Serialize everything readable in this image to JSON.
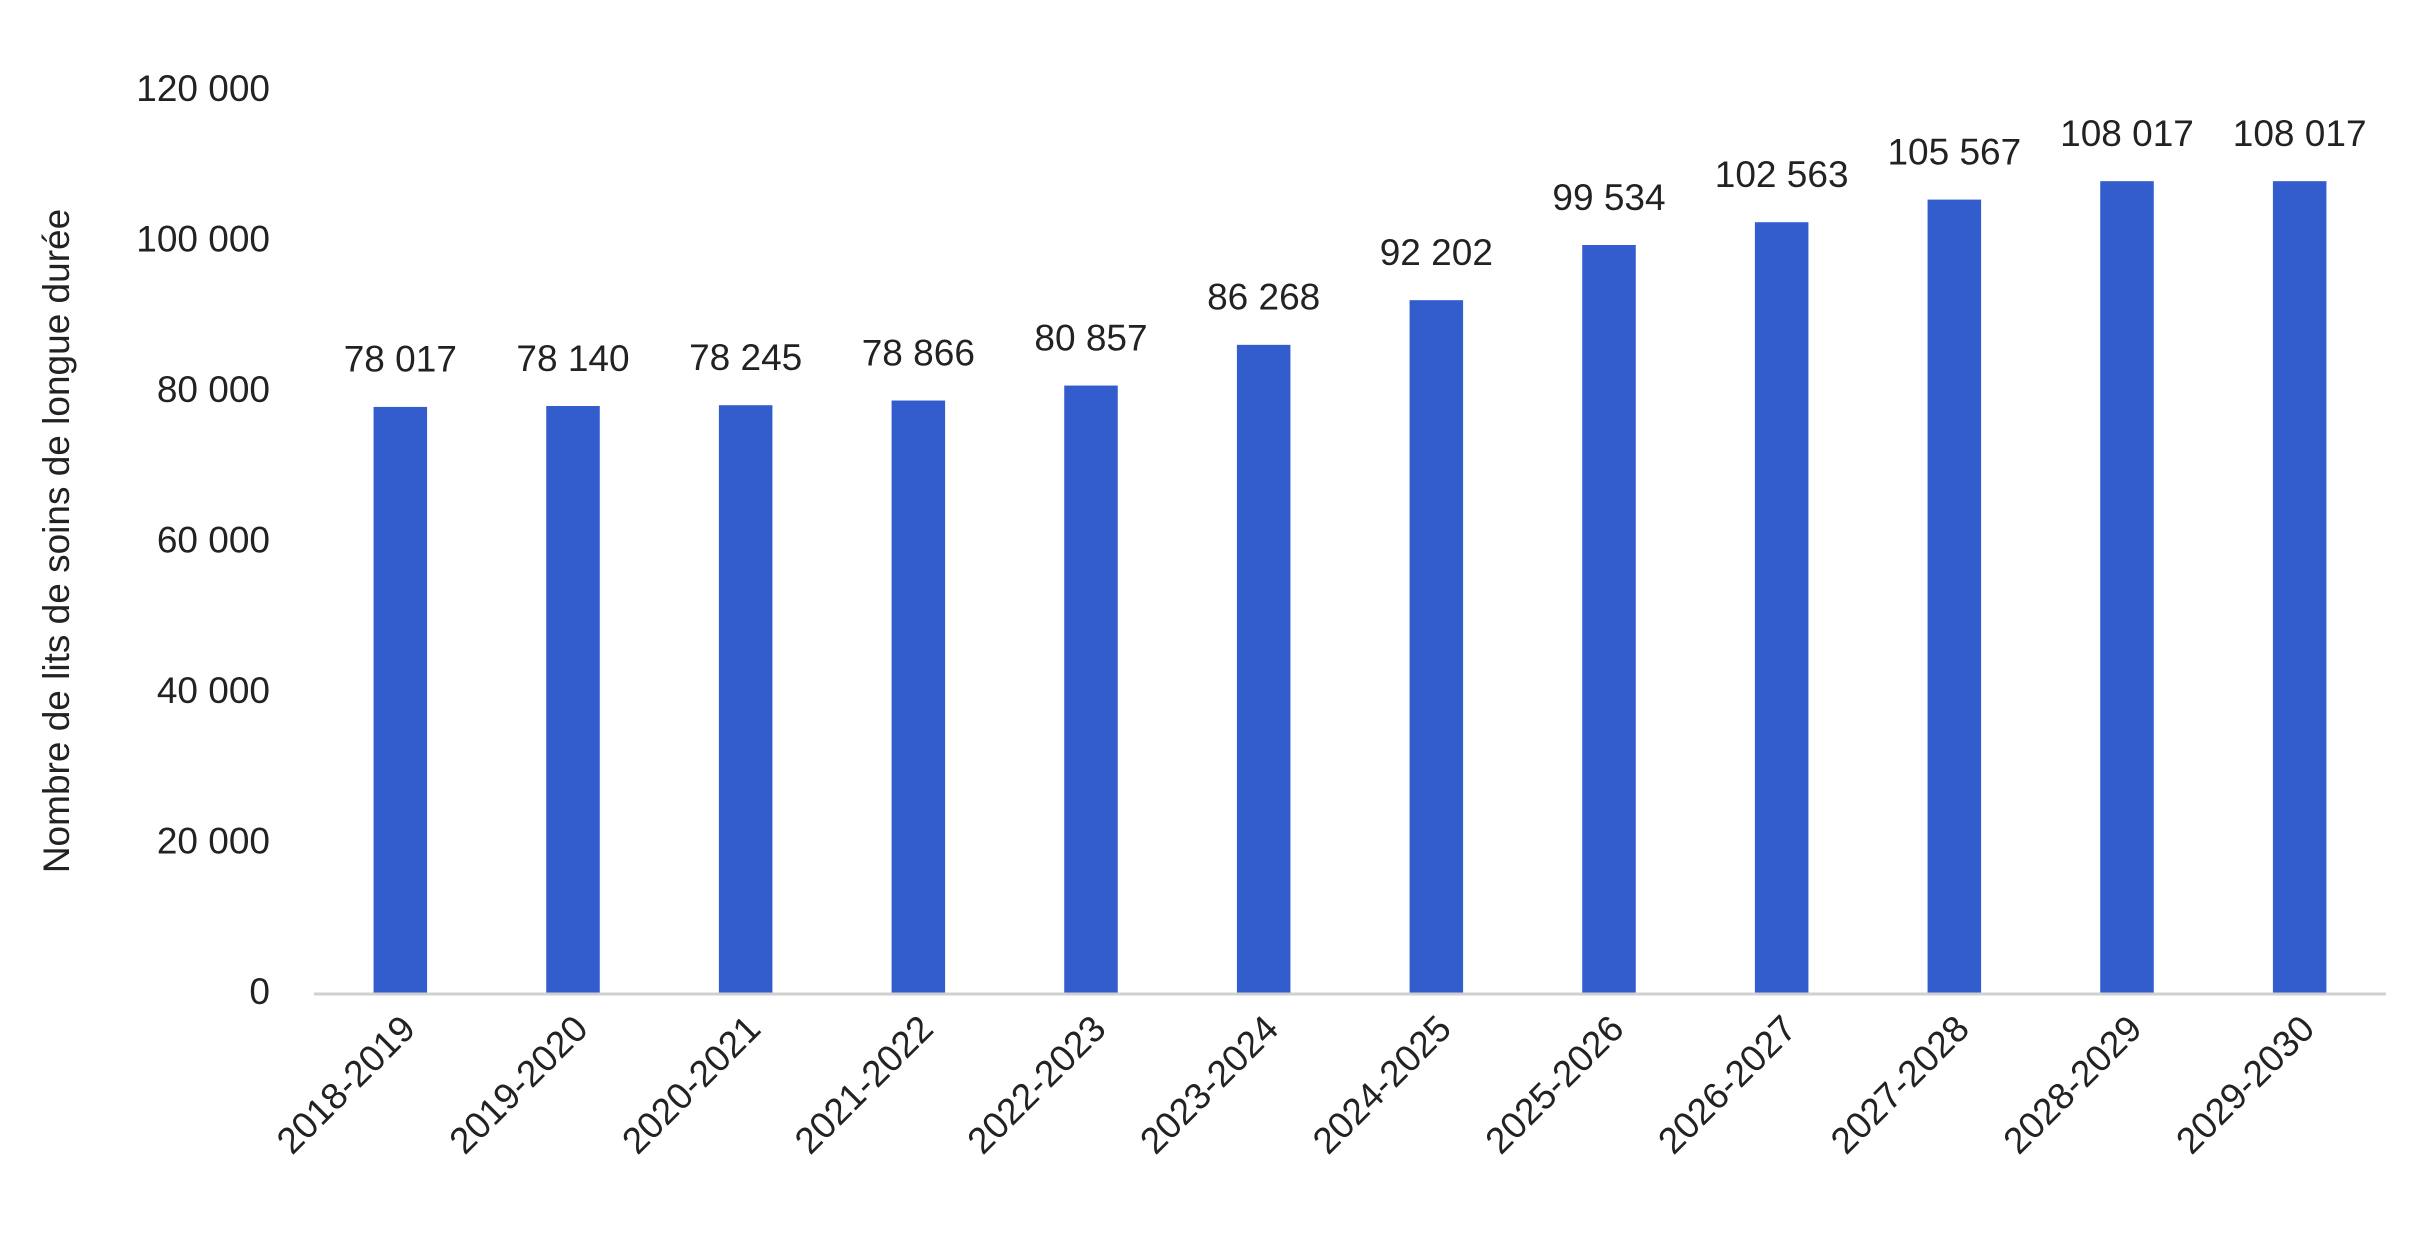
{
  "chart_data": {
    "type": "bar",
    "y_label": "Nombre de lits de soins de longue durée",
    "categories": [
      "2018-2019",
      "2019-2020",
      "2020-2021",
      "2021-2022",
      "2022-2023",
      "2023-2024",
      "2024-2025",
      "2025-2026",
      "2026-2027",
      "2027-2028",
      "2028-2029",
      "2029-2030"
    ],
    "values": [
      78017,
      78140,
      78245,
      78866,
      80857,
      86268,
      92202,
      99534,
      102563,
      105567,
      108017,
      108017
    ],
    "value_labels": [
      "78 017",
      "78 140",
      "78 245",
      "78 866",
      "80 857",
      "86 268",
      "92 202",
      "99 534",
      "102 563",
      "105 567",
      "108 017",
      "108 017"
    ],
    "color": "#335ccc",
    "ylim": [
      0,
      120000
    ],
    "yticks": [
      {
        "value": 0,
        "label": "0"
      },
      {
        "value": 20000,
        "label": "20 000"
      },
      {
        "value": 40000,
        "label": "40 000"
      },
      {
        "value": 60000,
        "label": "60 000"
      },
      {
        "value": 80000,
        "label": "80 000"
      },
      {
        "value": 100000,
        "label": "100 000"
      },
      {
        "value": 120000,
        "label": "120 000"
      }
    ],
    "grid": false
  }
}
